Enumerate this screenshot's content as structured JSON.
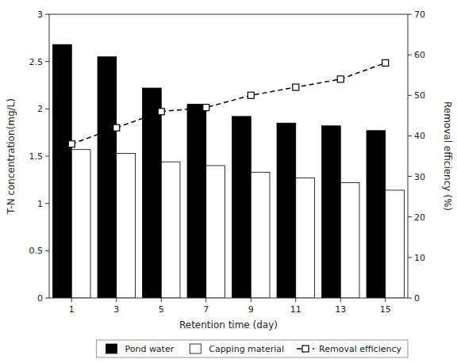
{
  "chart_data": {
    "type": "bar",
    "categories": [
      "1",
      "3",
      "5",
      "7",
      "9",
      "11",
      "13",
      "15"
    ],
    "series": [
      {
        "name": "Pond water",
        "color": "#000000",
        "values": [
          2.68,
          2.55,
          2.22,
          2.05,
          1.92,
          1.85,
          1.82,
          1.77
        ]
      },
      {
        "name": "Capping material",
        "color": "#ffffff",
        "values": [
          1.57,
          1.53,
          1.44,
          1.4,
          1.33,
          1.27,
          1.22,
          1.14
        ]
      },
      {
        "name": "Removal efficiency",
        "type": "line",
        "axis": "y2",
        "color": "#000000",
        "marker": "square",
        "line_style": "dashed",
        "values": [
          38,
          42,
          46,
          47,
          50,
          52,
          54,
          58
        ]
      }
    ],
    "xlabel": "Retention time (day)",
    "ylabel": "T-N concentration(mg/L)",
    "y2label": "Removal efficiency (%)",
    "ylim": [
      0,
      3
    ],
    "yticks": [
      0,
      0.5,
      1,
      1.5,
      2,
      2.5,
      3
    ],
    "y2lim": [
      0,
      70
    ],
    "y2ticks": [
      0,
      10,
      20,
      30,
      40,
      50,
      60,
      70
    ],
    "grid": false,
    "legend": "lower right"
  }
}
